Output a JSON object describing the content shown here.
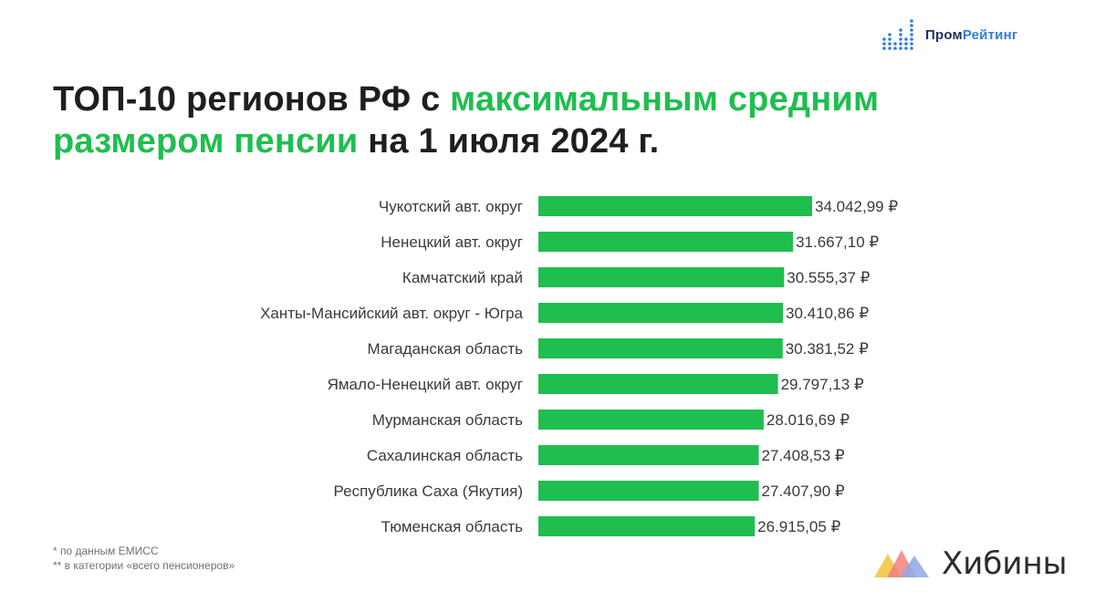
{
  "logo": {
    "icon": "bar-dots-icon",
    "part1": "Пром",
    "part2": "Рейтинг",
    "colors": {
      "dark": "#1f2f5e",
      "blue": "#2f7de1"
    }
  },
  "title": {
    "part1": "ТОП-10 регионов РФ с ",
    "highlight1": "максимальным средним",
    "highlight2": "размером пенсии",
    "part2": " на 1 июля 2024 г."
  },
  "chart_data": {
    "type": "bar",
    "orientation": "horizontal",
    "categories": [
      "Чукотский авт. округ",
      "Ненецкий авт. округ",
      "Камчатский край",
      "Ханты-Мансийский авт. округ - Югра",
      "Магаданская область",
      "Ямало-Ненецкий авт. округ",
      "Мурманская область",
      "Сахалинская область",
      "Республика Саха (Якутия)",
      "Тюменская область"
    ],
    "values": [
      34042.99,
      31667.1,
      30555.37,
      30410.86,
      30381.52,
      29797.13,
      28016.69,
      27408.53,
      27407.9,
      26915.05
    ],
    "value_labels": [
      "34.042,99 ₽",
      "31.667,10 ₽",
      "30.555,37 ₽",
      "30.410,86 ₽",
      "30.381,52 ₽",
      "29.797,13 ₽",
      "28.016,69 ₽",
      "27.408,53 ₽",
      "27.407,90 ₽",
      "26.915,05 ₽"
    ],
    "xlim": [
      0,
      34042.99
    ],
    "grid": false,
    "bar_color": "#1fbe4f"
  },
  "footnotes": {
    "line1": "* по данным ЕМИСС",
    "line2": "** в категории «всего пенсионеров»"
  },
  "brand": {
    "icon": "mountains-icon",
    "name": "Хибины",
    "colors": [
      "#f5c542",
      "#f07a7a",
      "#8ea8e6"
    ]
  }
}
